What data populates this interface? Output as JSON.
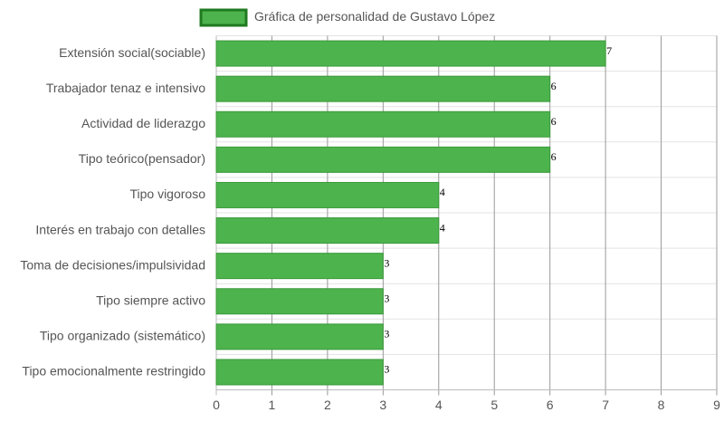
{
  "chart_data": {
    "type": "bar",
    "orientation": "horizontal",
    "series": [
      {
        "name": "Gráfica de personalidad de Gustavo López",
        "color": "#4db34d",
        "values": [
          7,
          6,
          6,
          6,
          4,
          4,
          3,
          3,
          3,
          3
        ]
      }
    ],
    "categories": [
      "Extensión social(sociable)",
      "Trabajador tenaz e intensivo",
      "Actividad de liderazgo",
      "Tipo teórico(pensador)",
      "Tipo vigoroso",
      "Interés en trabajo con detalles",
      "Toma de decisiones/impulsividad",
      "Tipo siempre activo",
      "Tipo organizado (sistemático)",
      "Tipo emocionalmente restringido"
    ],
    "xlim": [
      0,
      9
    ],
    "xticks": [
      0,
      1,
      2,
      3,
      4,
      5,
      6,
      7,
      8,
      9
    ],
    "grid": true
  }
}
